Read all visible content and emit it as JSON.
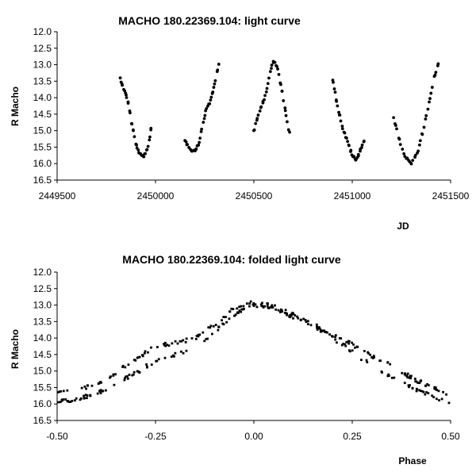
{
  "chart_data": [
    {
      "type": "scatter",
      "title": "MACHO 180.22369.104: light curve",
      "xlabel": "JD",
      "ylabel": "R Macho",
      "xlim": [
        2449500,
        2451500
      ],
      "ylim": [
        12.0,
        16.5
      ],
      "y_inverted": true,
      "grid": false,
      "legend": "none",
      "x_ticks": [
        "2449500",
        "2450000",
        "2450500",
        "2451000",
        "2451500"
      ],
      "y_ticks": [
        "12.0",
        "12.5",
        "13.0",
        "13.5",
        "14.0",
        "14.5",
        "15.0",
        "15.5",
        "16.0",
        "16.5"
      ],
      "segments": [
        {
          "x": [
            2449820,
            2449860,
            2449880,
            2449900,
            2449920,
            2449935,
            2449950,
            2449965,
            2449980
          ],
          "y": [
            13.4,
            14.1,
            14.8,
            15.4,
            15.72,
            15.78,
            15.72,
            15.45,
            14.8
          ]
        },
        {
          "x": [
            2450150,
            2450180,
            2450200,
            2450220,
            2450240,
            2450260,
            2450280,
            2450300,
            2450320
          ],
          "y": [
            15.3,
            15.6,
            15.6,
            15.4,
            14.8,
            14.3,
            14.1,
            13.6,
            13.0
          ]
        },
        {
          "x": [
            2450500,
            2450530,
            2450560,
            2450580,
            2450595,
            2450605,
            2450620,
            2450640,
            2450660,
            2450680
          ],
          "y": [
            15.0,
            14.4,
            13.9,
            13.3,
            12.95,
            12.92,
            13.1,
            13.7,
            14.4,
            15.05
          ]
        },
        {
          "x": [
            2450900,
            2450920,
            2450950,
            2450980,
            2451000,
            2451020,
            2451040,
            2451060
          ],
          "y": [
            13.4,
            14.1,
            14.9,
            15.4,
            15.75,
            15.9,
            15.6,
            15.3
          ]
        },
        {
          "x": [
            2451210,
            2451240,
            2451270,
            2451300,
            2451330,
            2451360,
            2451390,
            2451420,
            2451440
          ],
          "y": [
            14.6,
            15.3,
            15.8,
            16.0,
            15.7,
            15.0,
            14.2,
            13.3,
            12.95
          ]
        }
      ]
    },
    {
      "type": "scatter",
      "title": "MACHO 180.22369.104: folded light curve",
      "xlabel": "Phase",
      "ylabel": "R Macho",
      "xlim": [
        -0.5,
        0.5
      ],
      "ylim": [
        12.0,
        16.5
      ],
      "y_inverted": true,
      "grid": false,
      "legend": "none",
      "x_ticks": [
        "-0.50",
        "-0.25",
        "0.00",
        "0.25",
        "0.50"
      ],
      "y_ticks": [
        "12.0",
        "12.5",
        "13.0",
        "13.5",
        "14.0",
        "14.5",
        "15.0",
        "15.5",
        "16.0",
        "16.5"
      ],
      "upper_branch": {
        "x": [
          -0.5,
          -0.45,
          -0.4,
          -0.35,
          -0.3,
          -0.25,
          -0.2,
          -0.15,
          -0.1,
          -0.05,
          0.0,
          0.05,
          0.1,
          0.15,
          0.2,
          0.25,
          0.3,
          0.35,
          0.4,
          0.45,
          0.5
        ],
        "y": [
          15.65,
          15.6,
          15.4,
          15.05,
          14.65,
          14.25,
          14.15,
          14.0,
          13.6,
          13.1,
          12.92,
          13.05,
          13.3,
          13.55,
          13.9,
          14.2,
          14.55,
          14.85,
          15.2,
          15.5,
          15.7
        ]
      },
      "lower_branch": {
        "x": [
          -0.5,
          -0.45,
          -0.4,
          -0.35,
          -0.3,
          -0.25,
          -0.2,
          -0.15,
          -0.1,
          -0.05,
          0.0,
          0.05,
          0.1,
          0.15,
          0.2,
          0.25,
          0.3,
          0.35,
          0.4,
          0.45,
          0.5
        ],
        "y": [
          15.95,
          15.85,
          15.7,
          15.4,
          15.05,
          14.7,
          14.5,
          14.3,
          13.8,
          13.3,
          13.0,
          13.1,
          13.35,
          13.6,
          14.0,
          14.4,
          14.85,
          15.2,
          15.5,
          15.75,
          15.95
        ]
      }
    }
  ]
}
